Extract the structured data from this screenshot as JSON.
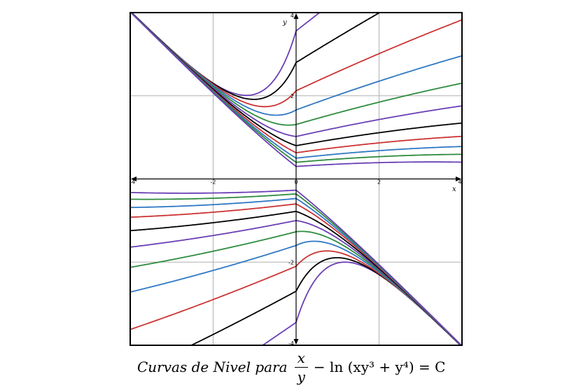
{
  "chart_data": {
    "type": "line",
    "title": "",
    "xlabel": "x",
    "ylabel": "y",
    "xlim": [
      -4,
      4
    ],
    "ylim": [
      -4,
      4
    ],
    "grid": true,
    "x_ticks": [
      "-4",
      "-2",
      "0",
      "2",
      "4"
    ],
    "y_ticks": [
      "4",
      "2",
      "-2",
      "-4"
    ],
    "level_set": "x/y - ln(x*y^3 + y^4) = C",
    "curve_colors": [
      "#6a3fb5",
      "#000000",
      "#cc3333",
      "#2f78c4",
      "#2e8b3e",
      "#6a3fb5",
      "#000000",
      "#cc3333",
      "#2f78c4",
      "#2e8b3e",
      "#6a3fb5"
    ],
    "upper_curves_min_y_at_x0": [
      3.56,
      2.8,
      2.12,
      1.66,
      1.31,
      1.02,
      0.8,
      0.63,
      0.5,
      0.4,
      0.3
    ],
    "lower_curves_max_y_at_x0": [
      -3.45,
      -2.7,
      -2.1,
      -1.6,
      -1.27,
      -1.0,
      -0.78,
      -0.6,
      -0.47,
      -0.36,
      -0.27
    ]
  },
  "caption": {
    "prefix": "Curvas de Nivel para",
    "numerator": "x",
    "denominator": "y",
    "rest": "− ln (xy³ + y⁴) = C"
  }
}
